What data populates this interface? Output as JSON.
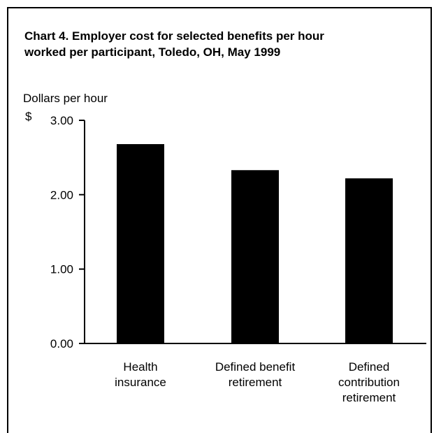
{
  "chart_data": {
    "type": "bar",
    "title_lines": [
      "Chart 4. Employer cost for selected benefits per hour",
      "worked per participant, Toledo, OH, May 1999"
    ],
    "ylabel": "Dollars per hour",
    "yunit_symbol": "$",
    "ylim": [
      0,
      3
    ],
    "yticks": [
      "0.00",
      "1.00",
      "2.00",
      "3.00"
    ],
    "categories": [
      [
        "Health",
        "insurance"
      ],
      [
        "Defined benefit",
        "retirement"
      ],
      [
        "Defined",
        "contribution",
        "retirement"
      ]
    ],
    "values": [
      2.68,
      2.33,
      2.22
    ],
    "bar_color": "#000000",
    "grid": false,
    "legend": "none"
  }
}
